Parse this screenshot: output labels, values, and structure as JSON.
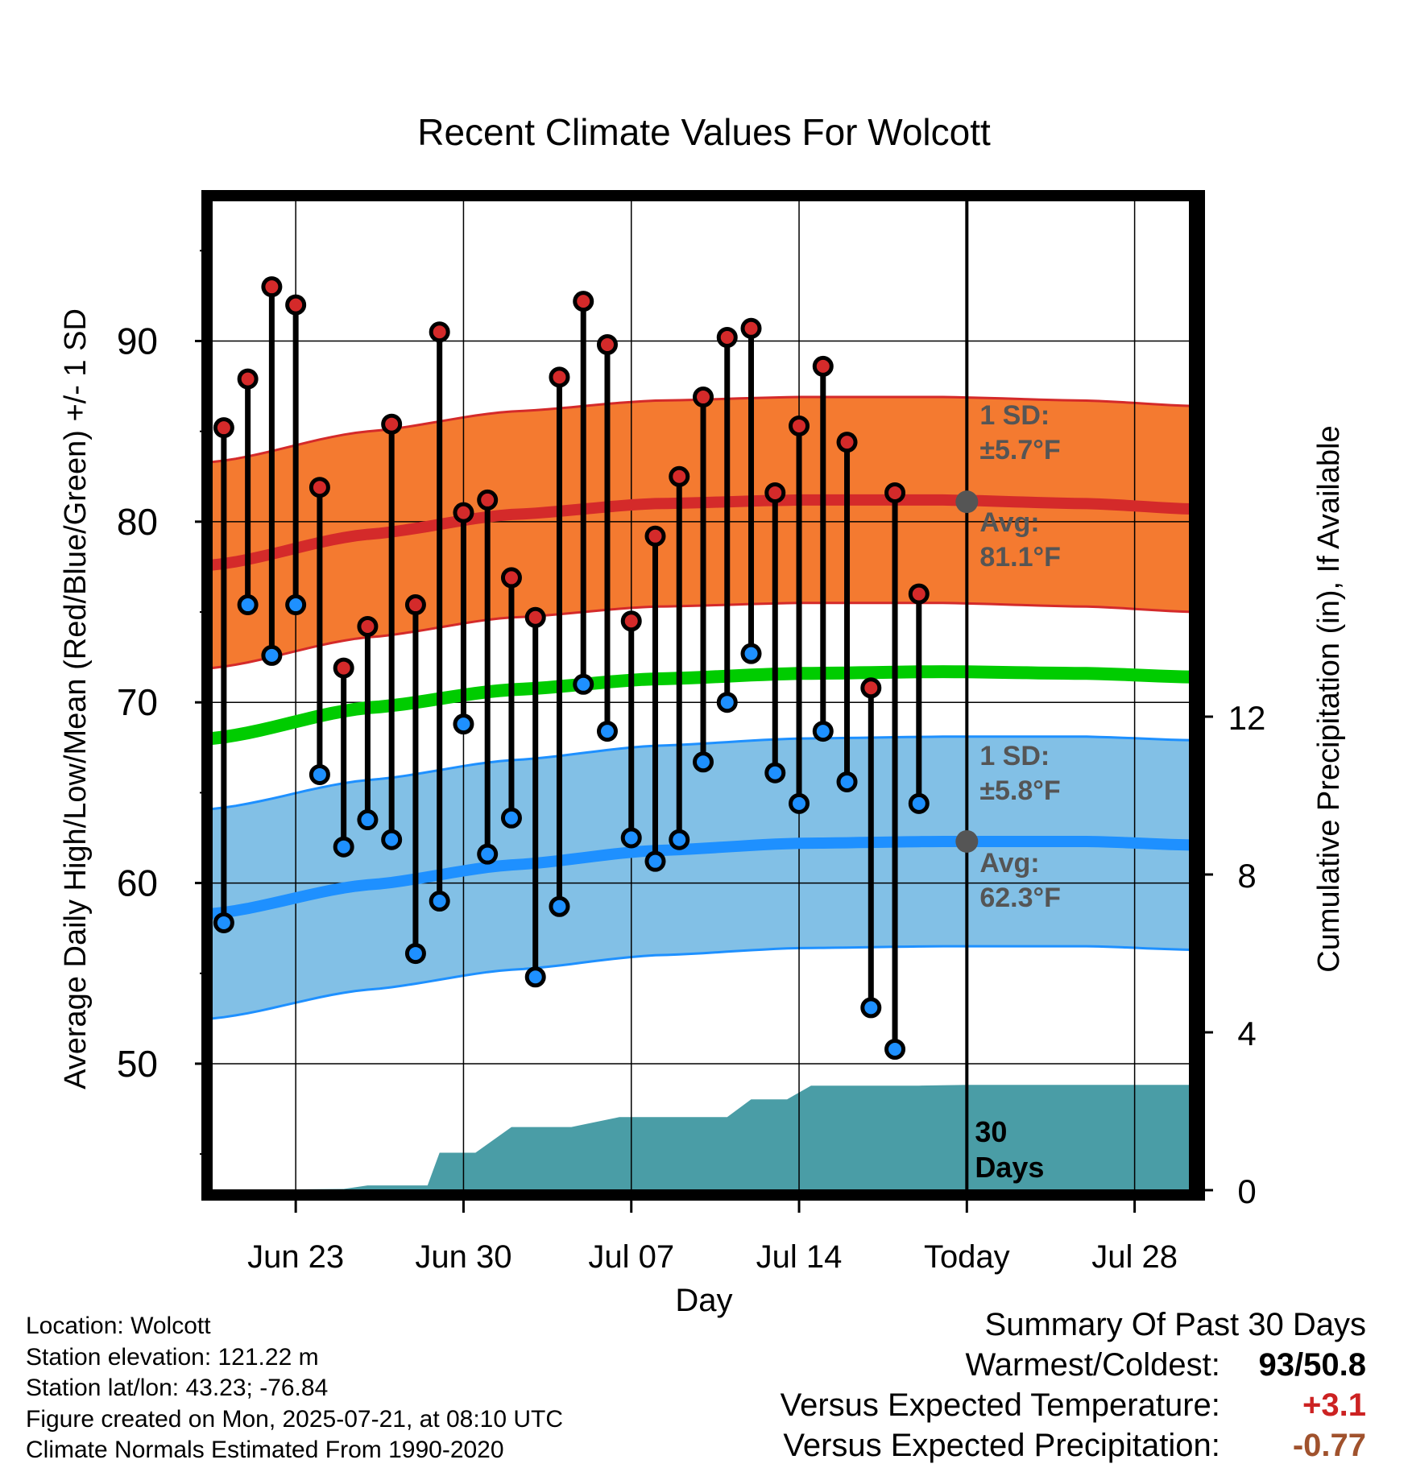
{
  "title": "Recent Climate Values For Wolcott",
  "colors": {
    "high_band": "#f47a30",
    "high_line": "#d42a2a",
    "low_band": "#82c0e6",
    "low_line": "#1e90ff",
    "mean_line": "#00cc00",
    "precip_fill": "#4a9da6",
    "avg_marker": "#555555",
    "warm_text": "#cc2222",
    "precip_text": "#a0522d",
    "annotation_text": "#555555"
  },
  "chart_data": {
    "type": "line",
    "title": "Recent Climate Values For Wolcott",
    "xlabel": "Day",
    "ylabel": "Average Daily High/Low/Mean (Red/Blue/Green) +/- 1 SD",
    "ylabel_right": "Cumulative Precipitation (in), If Available",
    "x_tick_labels": [
      "Jun 23",
      "Jun 30",
      "Jul 07",
      "Jul 14",
      "Today",
      "Jul 28"
    ],
    "x_tick_days": [
      3,
      10,
      17,
      24,
      31,
      38
    ],
    "xlim": [
      -0.5,
      40.5
    ],
    "ylim": [
      43,
      98
    ],
    "y_ticks": [
      50,
      60,
      70,
      80,
      90
    ],
    "y2lim": [
      0,
      12
    ],
    "y2_ticks": [
      0,
      4,
      8,
      12
    ],
    "grid": true,
    "today_day": 31,
    "today_label": "30 Days",
    "days": [
      0,
      1,
      2,
      3,
      4,
      5,
      6,
      7,
      8,
      9,
      10,
      11,
      12,
      13,
      14,
      15,
      16,
      17,
      18,
      19,
      20,
      21,
      22,
      23,
      24,
      25,
      26,
      27,
      28,
      29
    ],
    "daily_high": [
      85.2,
      87.9,
      93.0,
      92.0,
      81.9,
      71.9,
      74.2,
      85.4,
      75.4,
      90.5,
      80.5,
      81.2,
      76.9,
      74.7,
      88.0,
      92.2,
      89.8,
      74.5,
      79.2,
      82.5,
      86.9,
      90.2,
      90.7,
      81.6,
      85.3,
      88.6,
      84.4,
      70.8,
      81.6,
      76.0
    ],
    "daily_low": [
      57.8,
      75.4,
      72.6,
      75.4,
      66.0,
      62.0,
      63.5,
      62.4,
      56.1,
      59.0,
      68.8,
      61.6,
      63.6,
      54.8,
      58.7,
      71.0,
      68.4,
      62.5,
      61.2,
      62.4,
      66.7,
      70.0,
      72.7,
      66.1,
      64.4,
      68.4,
      65.6,
      53.1,
      50.8,
      64.4
    ],
    "normal_days": [
      -0.5,
      6,
      12,
      18,
      24,
      30,
      36,
      40.5
    ],
    "normal_high": [
      77.6,
      79.3,
      80.4,
      81.0,
      81.2,
      81.2,
      81.0,
      80.7
    ],
    "normal_low": [
      58.3,
      59.9,
      61.0,
      61.8,
      62.2,
      62.3,
      62.3,
      62.1
    ],
    "normal_mean": [
      68.0,
      69.7,
      70.7,
      71.3,
      71.6,
      71.7,
      71.6,
      71.4
    ],
    "high_sd": 5.7,
    "low_sd": 5.8,
    "precip_steps": [
      [
        -0.5,
        0
      ],
      [
        5,
        0.03
      ],
      [
        6,
        0.12
      ],
      [
        8.5,
        0.12
      ],
      [
        9,
        0.95
      ],
      [
        10.5,
        0.95
      ],
      [
        12,
        1.6
      ],
      [
        14.5,
        1.6
      ],
      [
        16.5,
        1.85
      ],
      [
        19.5,
        1.85
      ],
      [
        21,
        1.85
      ],
      [
        22,
        2.3
      ],
      [
        23.5,
        2.3
      ],
      [
        24.5,
        2.65
      ],
      [
        29,
        2.65
      ],
      [
        31,
        2.67
      ],
      [
        40.5,
        2.67
      ]
    ],
    "annotations": {
      "high_sd_label": "1 SD:",
      "high_sd_value": "±5.7°F",
      "high_avg_label": "Avg:",
      "high_avg_value": "81.1°F",
      "low_sd_label": "1 SD:",
      "low_sd_value": "±5.8°F",
      "low_avg_label": "Avg:",
      "low_avg_value": "62.3°F",
      "high_avg_marker": 81.1,
      "low_avg_marker": 62.3
    },
    "series": [
      {
        "name": "Red",
        "key": "daily_high"
      },
      {
        "name": "Blue",
        "key": "daily_low"
      },
      {
        "name": "Green",
        "key": "normal_mean"
      }
    ]
  },
  "footer": {
    "location": "Location: Wolcott",
    "elevation": "Station elevation: 121.22 m",
    "latlon": "Station lat/lon: 43.23; -76.84",
    "created": "Figure created on Mon, 2025-07-21, at 08:10 UTC",
    "normals": "Climate Normals Estimated From 1990-2020"
  },
  "summary": {
    "title": "Summary Of Past 30 Days",
    "warmest_label": "Warmest/Coldest:",
    "warmest_value": "93",
    "slash": "/",
    "coldest_value": "50.8",
    "temp_label": "Versus Expected Temperature:",
    "temp_value": "+3.1",
    "precip_label": "Versus Expected Precipitation:",
    "precip_value": "-0.77"
  }
}
